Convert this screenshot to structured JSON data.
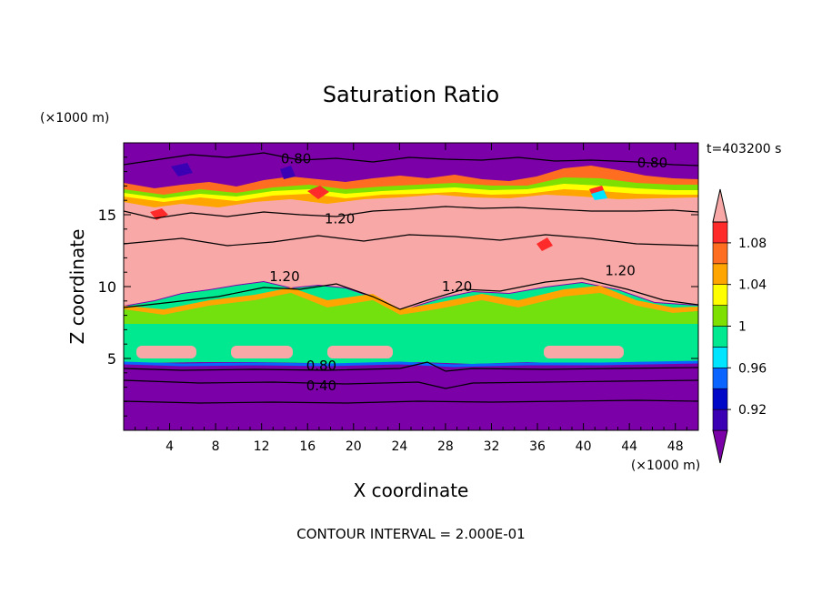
{
  "chart_data": {
    "type": "heatmap",
    "title": "Saturation Ratio",
    "xlabel": "X coordinate",
    "ylabel": "Z coordinate",
    "x_unit": "(×1000 m)",
    "y_unit": "(×1000 m)",
    "time_label": "t=403200 s",
    "footer": "CONTOUR INTERVAL = 2.000E-01",
    "xlim": [
      0,
      50
    ],
    "ylim": [
      0,
      20
    ],
    "x_ticks": [
      4,
      8,
      12,
      16,
      20,
      24,
      28,
      32,
      36,
      40,
      44,
      48
    ],
    "y_ticks": [
      5,
      10,
      15
    ],
    "colorbar": {
      "levels": [
        0.92,
        0.96,
        1,
        1.04,
        1.08
      ],
      "labels": [
        "0.92",
        "0.96",
        "1",
        "1.04",
        "1.08"
      ],
      "colors": [
        "#7b00a8",
        "#3c00b4",
        "#0008c8",
        "#0a64ff",
        "#00e5ff",
        "#00e890",
        "#7ee000",
        "#ffff00",
        "#ffa500",
        "#ff6e20",
        "#ff2a2a",
        "#f9a8a8"
      ]
    },
    "contour_labels": [
      {
        "text": "0.80",
        "x": 15.0,
        "y": 18.9
      },
      {
        "text": "0.80",
        "x": 46.0,
        "y": 18.6
      },
      {
        "text": "1.20",
        "x": 18.8,
        "y": 14.7
      },
      {
        "text": "1.20",
        "x": 14.0,
        "y": 10.7
      },
      {
        "text": "1.20",
        "x": 29.0,
        "y": 10.0
      },
      {
        "text": "1.20",
        "x": 43.2,
        "y": 11.1
      },
      {
        "text": "0.80",
        "x": 17.2,
        "y": 4.5
      },
      {
        "text": "0.40",
        "x": 17.2,
        "y": 3.1
      }
    ]
  }
}
